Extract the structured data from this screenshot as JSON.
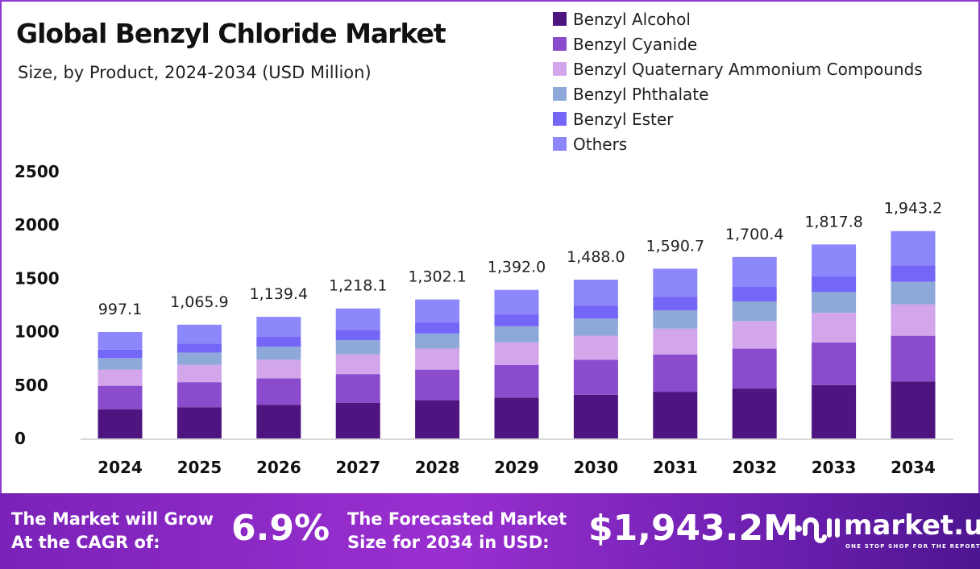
{
  "header": {
    "title": "Global Benzyl Chloride Market",
    "subtitle": "Size, by Product, 2024-2034 (USD Million)"
  },
  "chart_data": {
    "type": "bar",
    "stacked": true,
    "categories": [
      "2024",
      "2025",
      "2026",
      "2027",
      "2028",
      "2029",
      "2030",
      "2031",
      "2032",
      "2033",
      "2034"
    ],
    "totals": [
      "997.1",
      "1,065.9",
      "1,139.4",
      "1,218.1",
      "1,302.1",
      "1,392.0",
      "1,488.0",
      "1,590.7",
      "1,700.4",
      "1,817.8",
      "1,943.2"
    ],
    "series": [
      {
        "name": "Benzyl Alcohol",
        "color": "#4e1580",
        "values": [
          274.2,
          293.1,
          313.3,
          335.0,
          358.1,
          382.8,
          409.2,
          437.4,
          467.6,
          499.9,
          534.4
        ]
      },
      {
        "name": "Benzyl Cyanide",
        "color": "#8a4ccc",
        "values": [
          219.4,
          234.5,
          250.7,
          268.0,
          286.5,
          306.2,
          327.4,
          350.0,
          374.1,
          399.9,
          427.5
        ]
      },
      {
        "name": "Benzyl Quaternary Ammonium Compounds",
        "color": "#d3a6ec",
        "values": [
          151.6,
          162.0,
          173.2,
          185.2,
          197.9,
          211.6,
          226.2,
          241.8,
          258.5,
          276.3,
          295.4
        ]
      },
      {
        "name": "Benzyl Phthalate",
        "color": "#8fa8da",
        "values": [
          107.7,
          115.1,
          123.1,
          131.6,
          140.6,
          150.3,
          160.7,
          171.8,
          183.6,
          196.3,
          209.9
        ]
      },
      {
        "name": "Benzyl Ester",
        "color": "#7466f7",
        "values": [
          79.8,
          85.3,
          91.2,
          97.4,
          104.2,
          111.4,
          119.0,
          127.3,
          136.0,
          145.4,
          155.5
        ]
      },
      {
        "name": "Others",
        "color": "#8c87fb",
        "values": [
          164.5,
          175.9,
          188.0,
          201.0,
          214.8,
          229.7,
          245.5,
          262.4,
          280.6,
          299.9,
          320.6
        ]
      }
    ],
    "yticks": [
      "0",
      "500",
      "1000",
      "1500",
      "2000",
      "2500"
    ],
    "ylim": [
      0,
      2500
    ],
    "grid": false,
    "legend": "top-right"
  },
  "footer": {
    "cagr_label_1": "The Market will Grow",
    "cagr_label_2": "At the CAGR of:",
    "cagr_value": "6.9%",
    "forecast_label_1": "The Forecasted Market",
    "forecast_label_2": "Size for 2034 in USD:",
    "forecast_value": "$1,943.2M",
    "brand": "market.us",
    "tagline": "ONE STOP SHOP FOR THE REPORTS"
  }
}
